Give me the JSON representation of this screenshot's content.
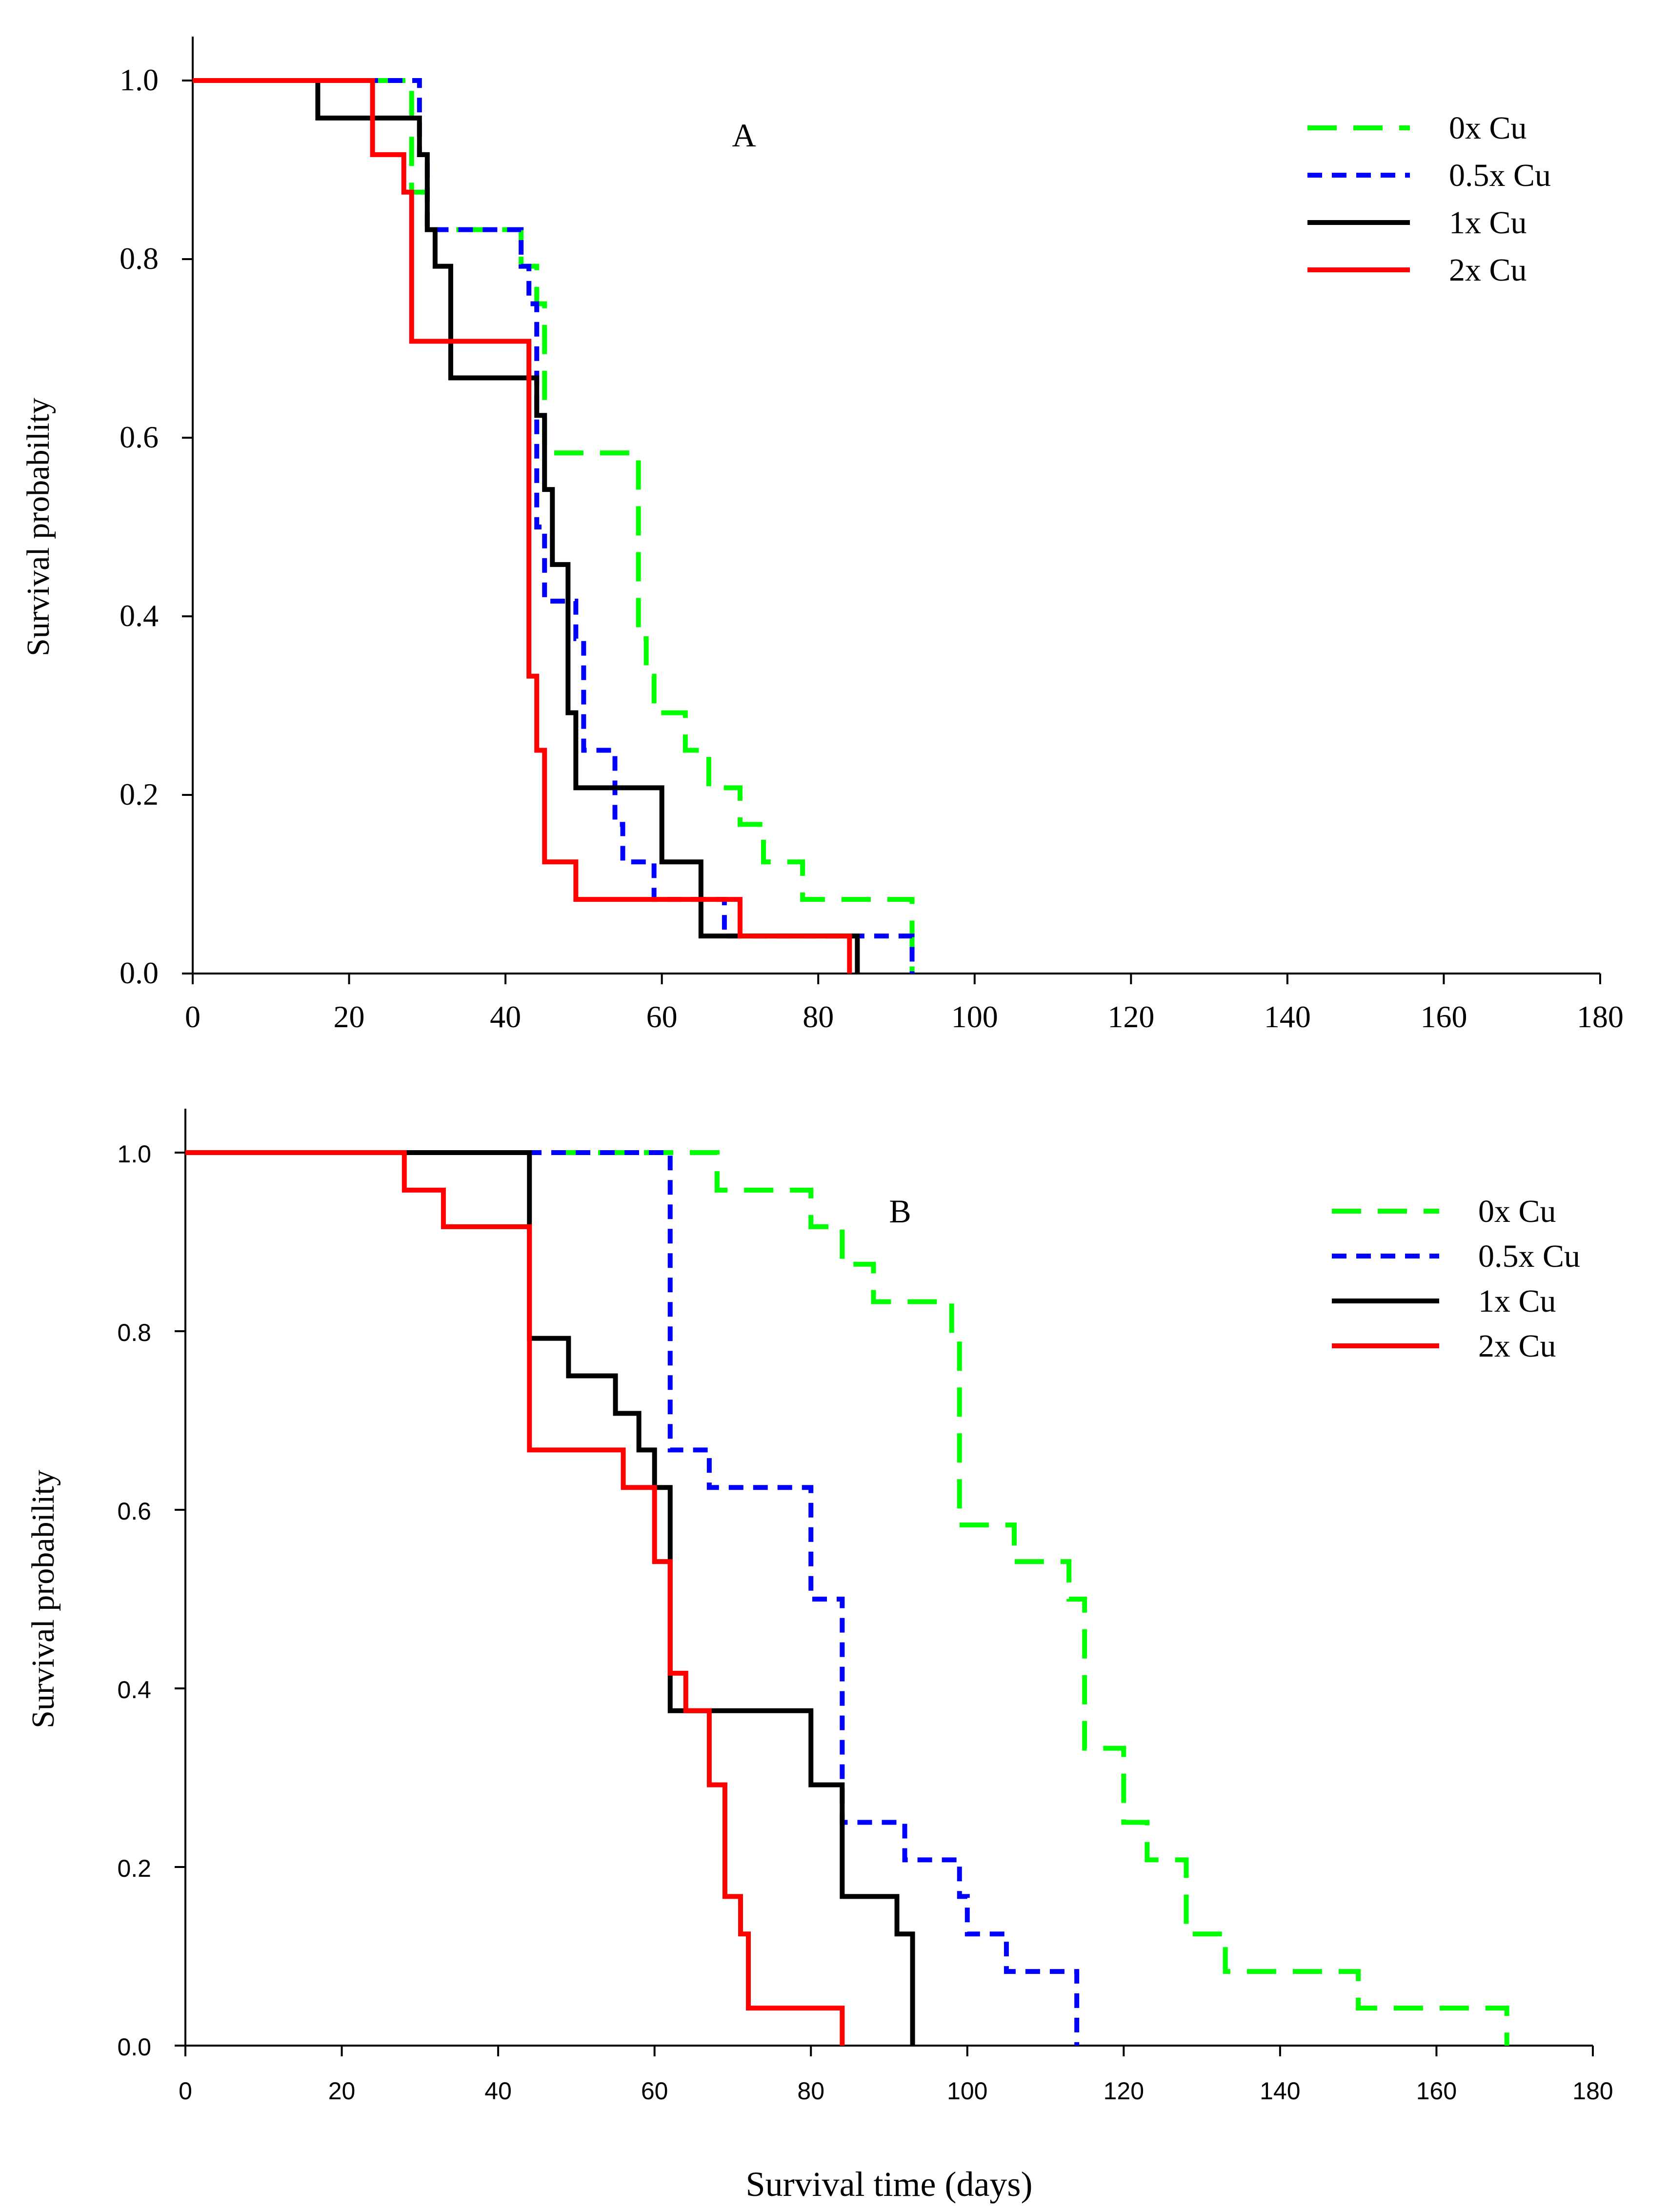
{
  "chart_data": [
    {
      "type": "line",
      "step": true,
      "panel_label": "A",
      "xlabel": "",
      "ylabel": "Survival probability",
      "xlim": [
        0,
        180
      ],
      "ylim": [
        0,
        1.0
      ],
      "xticks": [
        "0",
        "20",
        "40",
        "60",
        "80",
        "100",
        "120",
        "140",
        "160",
        "180"
      ],
      "yticks": [
        "0.0",
        "0.2",
        "0.4",
        "0.6",
        "0.8",
        "1.0"
      ],
      "legend_position": "top-right",
      "series": [
        {
          "name": "0x Cu",
          "color": "#00ff00",
          "dash": "long-dash",
          "x": [
            0,
            28,
            30,
            42,
            44,
            45,
            57,
            58,
            59,
            60,
            63,
            66,
            70,
            73,
            78,
            92
          ],
          "y": [
            1.0,
            0.875,
            0.833,
            0.792,
            0.75,
            0.583,
            0.375,
            0.333,
            0.292,
            0.292,
            0.25,
            0.208,
            0.167,
            0.125,
            0.083,
            0.0
          ]
        },
        {
          "name": "0.5x Cu",
          "color": "#0000ff",
          "dash": "short-dash",
          "x": [
            0,
            29,
            30,
            42,
            43,
            44,
            45,
            47,
            49,
            50,
            54,
            55,
            59,
            62,
            68,
            69,
            85,
            92
          ],
          "y": [
            1.0,
            0.917,
            0.833,
            0.792,
            0.75,
            0.5,
            0.417,
            0.417,
            0.375,
            0.25,
            0.167,
            0.125,
            0.083,
            0.083,
            0.042,
            0.042,
            0.042,
            0.0
          ]
        },
        {
          "name": "1x Cu",
          "color": "#000000",
          "dash": "solid",
          "x": [
            0,
            16,
            29,
            30,
            31,
            33,
            44,
            45,
            46,
            48,
            49,
            60,
            65,
            68,
            85
          ],
          "y": [
            1.0,
            0.958,
            0.917,
            0.833,
            0.792,
            0.667,
            0.625,
            0.542,
            0.458,
            0.292,
            0.208,
            0.125,
            0.042,
            0.042,
            0.0
          ]
        },
        {
          "name": "2x Cu",
          "color": "#ff0000",
          "dash": "solid",
          "x": [
            0,
            23,
            27,
            28,
            43,
            44,
            45,
            49,
            70,
            84
          ],
          "y": [
            1.0,
            0.917,
            0.875,
            0.708,
            0.333,
            0.25,
            0.125,
            0.083,
            0.042,
            0.0
          ]
        }
      ]
    },
    {
      "type": "line",
      "step": true,
      "panel_label": "B",
      "xlabel": "Survival time (days)",
      "ylabel": "Survival probability",
      "xlim": [
        0,
        180
      ],
      "ylim": [
        0,
        1.0
      ],
      "xticks": [
        "0",
        "20",
        "40",
        "60",
        "80",
        "100",
        "120",
        "140",
        "160",
        "180"
      ],
      "yticks": [
        "0.0",
        "0.2",
        "0.4",
        "0.6",
        "0.8",
        "1.0"
      ],
      "legend_position": "top-right",
      "series": [
        {
          "name": "0x Cu",
          "color": "#00ff00",
          "dash": "long-dash",
          "x": [
            0,
            68,
            80,
            84,
            88,
            98,
            99,
            106,
            113,
            115,
            120,
            123,
            128,
            133,
            150,
            169
          ],
          "y": [
            1.0,
            0.958,
            0.917,
            0.875,
            0.833,
            0.792,
            0.583,
            0.542,
            0.5,
            0.333,
            0.25,
            0.208,
            0.125,
            0.083,
            0.042,
            0.0
          ]
        },
        {
          "name": "0.5x Cu",
          "color": "#0000ff",
          "dash": "short-dash",
          "x": [
            0,
            62,
            67,
            80,
            84,
            85,
            92,
            99,
            100,
            105,
            114
          ],
          "y": [
            1.0,
            0.667,
            0.625,
            0.5,
            0.25,
            0.25,
            0.208,
            0.167,
            0.125,
            0.083,
            0.0
          ]
        },
        {
          "name": "1x Cu",
          "color": "#000000",
          "dash": "solid",
          "x": [
            0,
            44,
            49,
            55,
            58,
            60,
            62,
            80,
            84,
            91,
            93
          ],
          "y": [
            1.0,
            0.792,
            0.75,
            0.708,
            0.667,
            0.625,
            0.375,
            0.292,
            0.167,
            0.125,
            0.0
          ]
        },
        {
          "name": "2x Cu",
          "color": "#ff0000",
          "dash": "solid",
          "x": [
            0,
            28,
            33,
            44,
            56,
            60,
            62,
            64,
            67,
            69,
            71,
            72,
            84
          ],
          "y": [
            1.0,
            0.958,
            0.917,
            0.667,
            0.625,
            0.542,
            0.417,
            0.375,
            0.292,
            0.167,
            0.125,
            0.042,
            0.0
          ]
        }
      ]
    }
  ]
}
